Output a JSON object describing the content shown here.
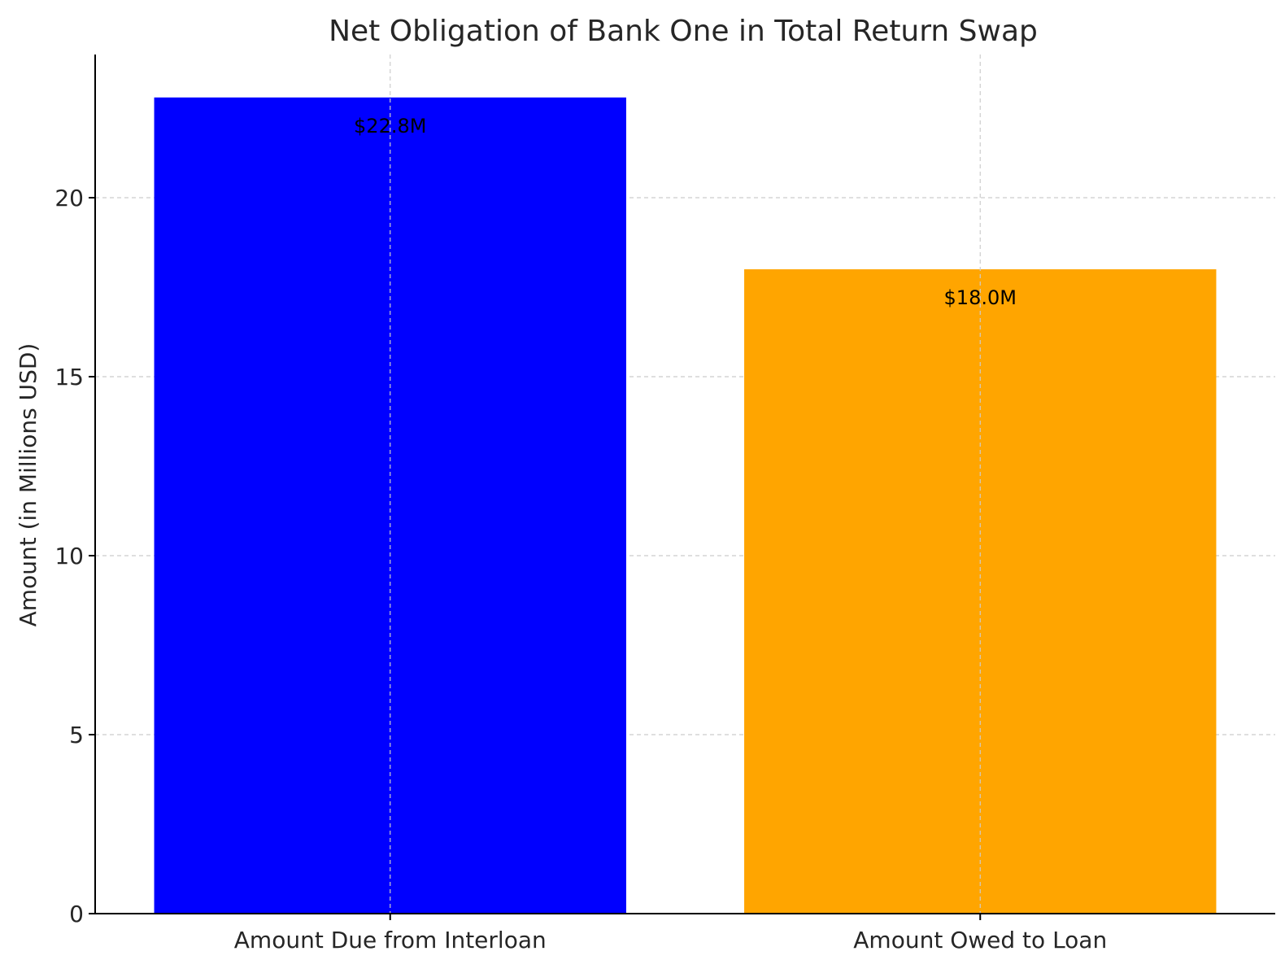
{
  "chart_data": {
    "type": "bar",
    "title": "Net Obligation of Bank One in Total Return Swap",
    "xlabel": "",
    "ylabel": "Amount (in Millions USD)",
    "categories": [
      "Amount Due from Interloan",
      "Amount Owed to Loan"
    ],
    "values": [
      22.8,
      18.0
    ],
    "data_labels": [
      "$22.8M",
      "$18.0M"
    ],
    "colors": [
      "#0000ff",
      "#ffa500"
    ],
    "ylim": [
      0,
      24
    ],
    "yticks": [
      0,
      5,
      10,
      15,
      20
    ],
    "grid": true,
    "legend": "none"
  }
}
